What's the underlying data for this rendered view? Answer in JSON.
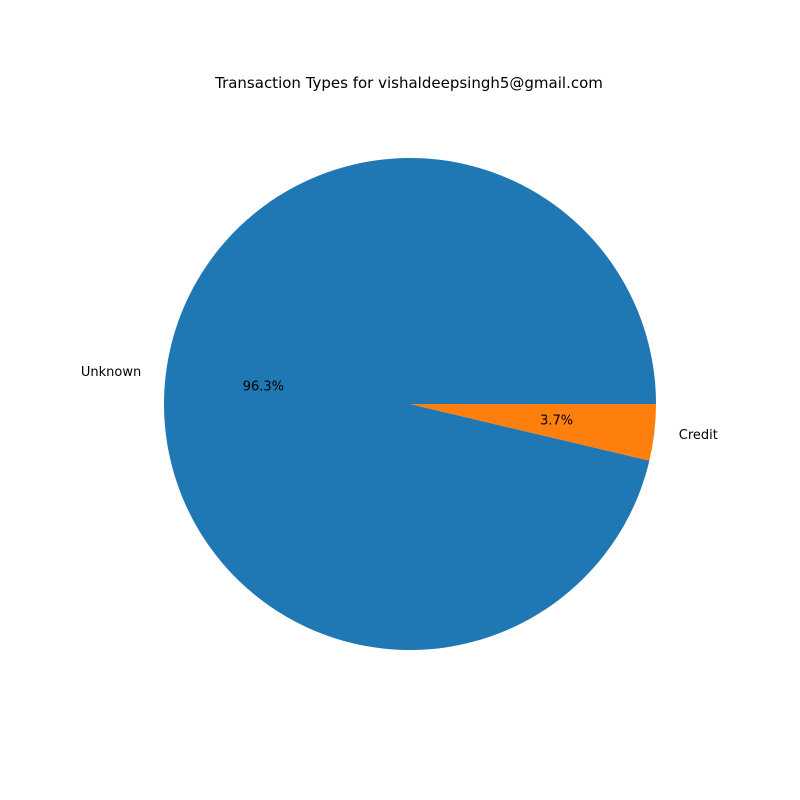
{
  "chart_data": {
    "type": "pie",
    "title": "Transaction Types for vishaldeepsingh5@gmail.com",
    "slices": [
      {
        "label": "Unknown",
        "value": 96.3,
        "pct_label": "96.3%",
        "color": "#1f77b4"
      },
      {
        "label": "Credit",
        "value": 3.7,
        "pct_label": "3.7%",
        "color": "#ff7f0e"
      }
    ],
    "start_angle_deg": 0,
    "direction": "counterclockwise",
    "legend": "none"
  }
}
